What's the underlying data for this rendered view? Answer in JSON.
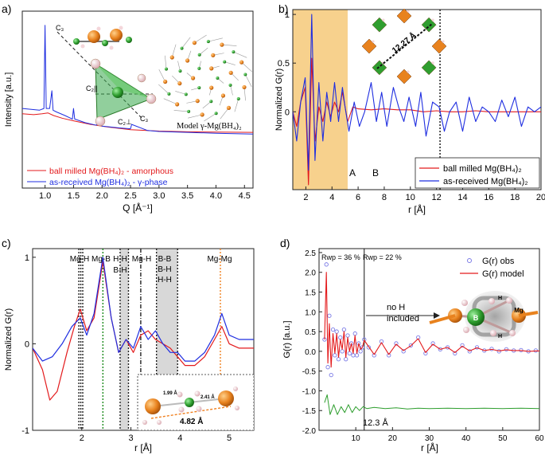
{
  "panel_letters": [
    "a)",
    "b)",
    "c)",
    "d)"
  ],
  "colors": {
    "ball_milled": "#e31a1c",
    "as_received": "#1f2ee0",
    "obs": "#7a7ae6",
    "model": "#e31a1c",
    "diff": "#2e9e2e",
    "regionA": "#f6c979",
    "mgb_line": "#1a8a1a",
    "mgmg_line": "#f08020",
    "shade": "#d8d8d8"
  },
  "annotations": {
    "a": {
      "model_label": "Model γ-Mg(BH₄)₂",
      "c3_top": "C₃",
      "c2par": "C₂||",
      "c2perp": "C₂⊥",
      "c3_bottom": "C₃"
    },
    "b": {
      "region_a": "A",
      "region_b": "B",
      "distance": "12.27 Å"
    },
    "c": {
      "bond_labels": [
        "Mg-H",
        "Mg-B",
        "H-H",
        "B-H",
        "Mg-H",
        "B-B",
        "B-H",
        "H-H",
        "Mg-Mg"
      ],
      "inset_d1": "1.99 Å",
      "inset_d2": "2.41 Å",
      "inset_d3": "4.82 Å"
    },
    "d": {
      "rwp_left": "Rwp = 36 %",
      "rwp_right": "Rwp = 22 %",
      "no_h": "no H",
      "included": "included",
      "cutoff": "12.3 Å",
      "atom_b": "B",
      "atom_mg": "Mg",
      "atom_h1": "H",
      "atom_h2": "H"
    }
  },
  "chart_data": [
    {
      "id": "a",
      "type": "line",
      "xlabel": "Q [Å⁻¹]",
      "ylabel": "Intensity [a.u.]",
      "xlim": [
        0.6,
        4.65
      ],
      "ylim": [
        0,
        1
      ],
      "xticks": [
        1.0,
        1.5,
        2.0,
        2.5,
        3.0,
        3.5,
        4.0,
        4.5
      ],
      "yticks_shown": false,
      "series": [
        {
          "name": "ball milled Mg(BH₄)₂ - amorphous",
          "color": "#e31a1c",
          "x": [
            0.6,
            0.8,
            0.95,
            1.05,
            1.15,
            1.3,
            1.5,
            1.8,
            2.1,
            2.5,
            3.0,
            3.5,
            4.0,
            4.65
          ],
          "y": [
            0.42,
            0.415,
            0.42,
            0.425,
            0.41,
            0.395,
            0.38,
            0.36,
            0.345,
            0.33,
            0.322,
            0.318,
            0.316,
            0.315
          ]
        },
        {
          "name": "as-received Mg(BH₄)₂ - γ-phase",
          "color": "#1f2ee0",
          "x": [
            0.6,
            0.9,
            0.98,
            1.0,
            1.02,
            1.08,
            1.12,
            1.14,
            1.2,
            1.35,
            1.48,
            1.5,
            1.52,
            1.7,
            1.9,
            1.92,
            2.0,
            2.3,
            2.5,
            2.52,
            2.8,
            3.0,
            3.5,
            4.0,
            4.65
          ],
          "y": [
            0.45,
            0.44,
            0.45,
            0.92,
            0.45,
            0.45,
            0.55,
            0.44,
            0.43,
            0.41,
            0.39,
            0.45,
            0.39,
            0.37,
            0.355,
            0.38,
            0.35,
            0.34,
            0.335,
            0.36,
            0.325,
            0.32,
            0.315,
            0.31,
            0.305
          ]
        }
      ]
    },
    {
      "id": "b",
      "type": "line",
      "xlabel": "r [Å]",
      "ylabel": "Normalized G(r)",
      "xlim": [
        1,
        20
      ],
      "ylim": [
        -0.8,
        1.05
      ],
      "xticks": [
        2,
        4,
        6,
        8,
        10,
        12,
        14,
        16,
        18,
        20
      ],
      "yticks": [
        0,
        0.5,
        1
      ],
      "regions": [
        {
          "label": "A",
          "from": 1,
          "to": 5.2
        }
      ],
      "vlines": [
        12.27
      ],
      "series": [
        {
          "name": "ball milled Mg(BH₄)₂",
          "color": "#e31a1c",
          "x": [
            1.0,
            1.3,
            1.6,
            1.95,
            2.2,
            2.45,
            2.7,
            3.0,
            3.3,
            3.6,
            3.9,
            4.2,
            4.5,
            4.8,
            5.2,
            5.6,
            6.0,
            7.0,
            8.0,
            9.0,
            10.0,
            11.0,
            12.0,
            13.0,
            14.0,
            15.0,
            16.0,
            17.0,
            18.0,
            19.0,
            20.0
          ],
          "y": [
            0.0,
            -0.15,
            0.1,
            0.25,
            -0.75,
            0.55,
            -0.3,
            0.05,
            -0.1,
            0.1,
            -0.05,
            0.1,
            0.0,
            0.2,
            -0.1,
            0.05,
            0.03,
            0.02,
            0.03,
            0.02,
            0.02,
            0.0,
            0.01,
            0.0,
            0.0,
            0.01,
            0.0,
            0.0,
            0.0,
            0.0,
            0.0
          ]
        },
        {
          "name": "as-received Mg(BH₄)₂",
          "color": "#1f2ee0",
          "x": [
            1.0,
            1.3,
            1.6,
            1.95,
            2.2,
            2.45,
            2.7,
            3.0,
            3.3,
            3.6,
            3.9,
            4.2,
            4.5,
            4.8,
            5.0,
            5.3,
            5.7,
            6.1,
            6.5,
            7.0,
            7.4,
            7.8,
            8.2,
            8.7,
            9.1,
            9.5,
            9.9,
            10.4,
            10.8,
            11.2,
            11.7,
            12.2,
            12.6,
            13.0,
            13.5,
            14.0,
            14.5,
            15.0,
            15.5,
            16.0,
            16.5,
            17.0,
            17.5,
            18.0,
            18.5,
            19.0,
            19.5,
            20.0
          ],
          "y": [
            0.0,
            -0.3,
            0.1,
            0.35,
            -0.6,
            1.0,
            -0.5,
            0.3,
            -0.3,
            0.2,
            -0.1,
            0.3,
            -0.1,
            0.25,
            0.05,
            -0.2,
            0.1,
            -0.15,
            0.0,
            0.3,
            -0.1,
            0.2,
            -0.15,
            0.25,
            0.05,
            -0.1,
            0.15,
            -0.15,
            0.2,
            -0.25,
            0.1,
            0.05,
            -0.2,
            0.0,
            0.1,
            -0.2,
            0.15,
            -0.1,
            0.05,
            0.0,
            -0.1,
            0.12,
            -0.05,
            0.15,
            -0.15,
            0.05,
            0.0,
            0.05
          ]
        }
      ]
    },
    {
      "id": "c",
      "type": "line",
      "xlabel": "r [Å]",
      "ylabel": "Normalized G(r)",
      "xlim": [
        1.0,
        5.5
      ],
      "ylim": [
        -1,
        1.1
      ],
      "xticks": [
        2,
        3,
        4,
        5
      ],
      "yticks": [
        -1,
        0,
        1
      ],
      "shaded": [
        {
          "from": 2.78,
          "to": 2.95
        },
        {
          "from": 3.52,
          "to": 3.95
        }
      ],
      "vlines": [
        {
          "x": 1.94,
          "style": "dotted",
          "color": "#222222"
        },
        {
          "x": 1.98,
          "style": "dotted",
          "color": "#222222"
        },
        {
          "x": 2.02,
          "style": "dotted",
          "color": "#222222"
        },
        {
          "x": 2.43,
          "style": "dotted",
          "color": "#1a8a1a"
        },
        {
          "x": 2.78,
          "style": "dotted",
          "color": "#222222"
        },
        {
          "x": 2.95,
          "style": "dotted",
          "color": "#222222"
        },
        {
          "x": 3.2,
          "style": "dashdot",
          "color": "#222222"
        },
        {
          "x": 3.52,
          "style": "dotted",
          "color": "#222222"
        },
        {
          "x": 3.95,
          "style": "dotted",
          "color": "#222222"
        },
        {
          "x": 4.82,
          "style": "dotted",
          "color": "#f08020"
        }
      ],
      "series": [
        {
          "name": "ball milled Mg(BH₄)₂",
          "color": "#e31a1c",
          "x": [
            1.0,
            1.2,
            1.35,
            1.5,
            1.7,
            1.85,
            1.97,
            2.1,
            2.25,
            2.43,
            2.6,
            2.75,
            2.9,
            3.05,
            3.2,
            3.35,
            3.5,
            3.65,
            3.8,
            3.95,
            4.1,
            4.3,
            4.5,
            4.7,
            4.85,
            5.0,
            5.2,
            5.5
          ],
          "y": [
            -0.05,
            -0.3,
            -0.65,
            -0.55,
            -0.1,
            0.2,
            0.4,
            0.15,
            0.3,
            0.95,
            0.3,
            -0.1,
            0.05,
            -0.1,
            0.1,
            0.15,
            0.05,
            0.0,
            -0.05,
            -0.15,
            -0.25,
            -0.25,
            -0.15,
            0.05,
            0.2,
            0.0,
            -0.05,
            -0.05
          ]
        },
        {
          "name": "as-received Mg(BH₄)₂",
          "color": "#1f2ee0",
          "x": [
            1.0,
            1.2,
            1.4,
            1.6,
            1.8,
            1.97,
            2.1,
            2.25,
            2.43,
            2.6,
            2.75,
            2.9,
            3.05,
            3.2,
            3.35,
            3.5,
            3.65,
            3.8,
            3.95,
            4.1,
            4.3,
            4.5,
            4.7,
            4.85,
            5.0,
            5.2,
            5.5
          ],
          "y": [
            -0.05,
            -0.2,
            -0.15,
            0.0,
            0.2,
            0.3,
            0.1,
            0.35,
            1.0,
            0.3,
            -0.1,
            0.05,
            -0.05,
            0.2,
            0.05,
            0.15,
            0.0,
            -0.1,
            -0.1,
            -0.2,
            -0.2,
            -0.1,
            0.1,
            0.35,
            0.1,
            0.05,
            0.05
          ]
        }
      ]
    },
    {
      "id": "d",
      "type": "line",
      "xlabel": "r [Å]",
      "ylabel": "G(r) [a.u.]",
      "xlim": [
        0,
        60
      ],
      "ylim": [
        -2.0,
        2.6
      ],
      "xticks": [
        10,
        20,
        30,
        40,
        50,
        60
      ],
      "yticks": [
        -2.0,
        -1.5,
        -1.0,
        -0.5,
        0.0,
        0.5,
        1.0,
        1.5,
        2.0,
        2.5
      ],
      "vlines": [
        12.3
      ],
      "legend": [
        "G(r) obs",
        "G(r) model"
      ],
      "series": [
        {
          "name": "G(r) obs",
          "style": "markers",
          "color": "#7a7ae6",
          "x": [
            1.5,
            2.0,
            2.4,
            2.8,
            3.3,
            3.8,
            4.3,
            4.8,
            5.3,
            5.8,
            6.3,
            6.8,
            7.3,
            7.8,
            8.3,
            8.8,
            9.3,
            9.8,
            10.3,
            10.8,
            11.3,
            11.8,
            12.3,
            13.5,
            15,
            17,
            19,
            21,
            23,
            25,
            27,
            29,
            31,
            33,
            35,
            37,
            39,
            41,
            43,
            45,
            47,
            49,
            51,
            53,
            55,
            57,
            59
          ],
          "y": [
            0.3,
            2.2,
            -0.4,
            0.9,
            -0.6,
            0.55,
            -0.1,
            0.5,
            -0.2,
            0.35,
            0.0,
            0.55,
            -0.2,
            0.4,
            -0.05,
            0.2,
            -0.1,
            0.45,
            -0.1,
            0.2,
            0.0,
            0.1,
            0.3,
            0.1,
            -0.1,
            0.25,
            -0.1,
            0.2,
            0.0,
            0.15,
            0.35,
            -0.05,
            0.2,
            0.05,
            0.1,
            -0.05,
            0.15,
            0.0,
            0.1,
            0.02,
            0.06,
            0.0,
            0.05,
            0.02,
            0.03,
            0.0,
            0.02
          ]
        },
        {
          "name": "G(r) model",
          "style": "line",
          "color": "#e31a1c",
          "x": [
            1.5,
            2.0,
            2.4,
            2.8,
            3.3,
            3.8,
            4.3,
            4.8,
            5.3,
            5.8,
            6.3,
            6.8,
            7.3,
            7.8,
            8.3,
            8.8,
            9.3,
            9.8,
            10.3,
            10.8,
            11.3,
            11.8,
            12.3,
            13.5,
            15,
            17,
            19,
            21,
            23,
            25,
            27,
            29,
            31,
            33,
            35,
            37,
            39,
            41,
            43,
            45,
            47,
            49,
            51,
            53,
            55,
            57,
            59,
            60
          ],
          "y": [
            0.3,
            2.0,
            -0.3,
            0.7,
            -0.4,
            0.45,
            -0.05,
            0.45,
            -0.15,
            0.3,
            0.05,
            0.5,
            -0.15,
            0.35,
            0.0,
            0.2,
            -0.05,
            0.4,
            -0.05,
            0.2,
            0.05,
            0.1,
            0.28,
            0.12,
            -0.08,
            0.22,
            -0.08,
            0.18,
            0.02,
            0.14,
            0.32,
            -0.03,
            0.18,
            0.05,
            0.1,
            -0.03,
            0.13,
            0.01,
            0.09,
            0.02,
            0.05,
            0.01,
            0.04,
            0.02,
            0.02,
            0.0,
            0.01,
            0.01
          ]
        },
        {
          "name": "difference",
          "style": "line",
          "color": "#2e9e2e",
          "x": [
            1.5,
            2.2,
            3.0,
            4.0,
            5.0,
            6.0,
            7.0,
            8.0,
            9.0,
            10.0,
            11.0,
            12.0,
            13.0,
            15.0,
            18.0,
            21.0,
            24.0,
            27.0,
            30.0,
            35.0,
            40.0,
            45.0,
            50.0,
            55.0,
            60.0
          ],
          "y": [
            -1.3,
            -1.1,
            -1.6,
            -1.35,
            -1.6,
            -1.4,
            -1.55,
            -1.35,
            -1.55,
            -1.4,
            -1.5,
            -1.4,
            -1.45,
            -1.42,
            -1.45,
            -1.43,
            -1.46,
            -1.44,
            -1.45,
            -1.44,
            -1.45,
            -1.44,
            -1.45,
            -1.44,
            -1.45
          ]
        }
      ]
    }
  ]
}
